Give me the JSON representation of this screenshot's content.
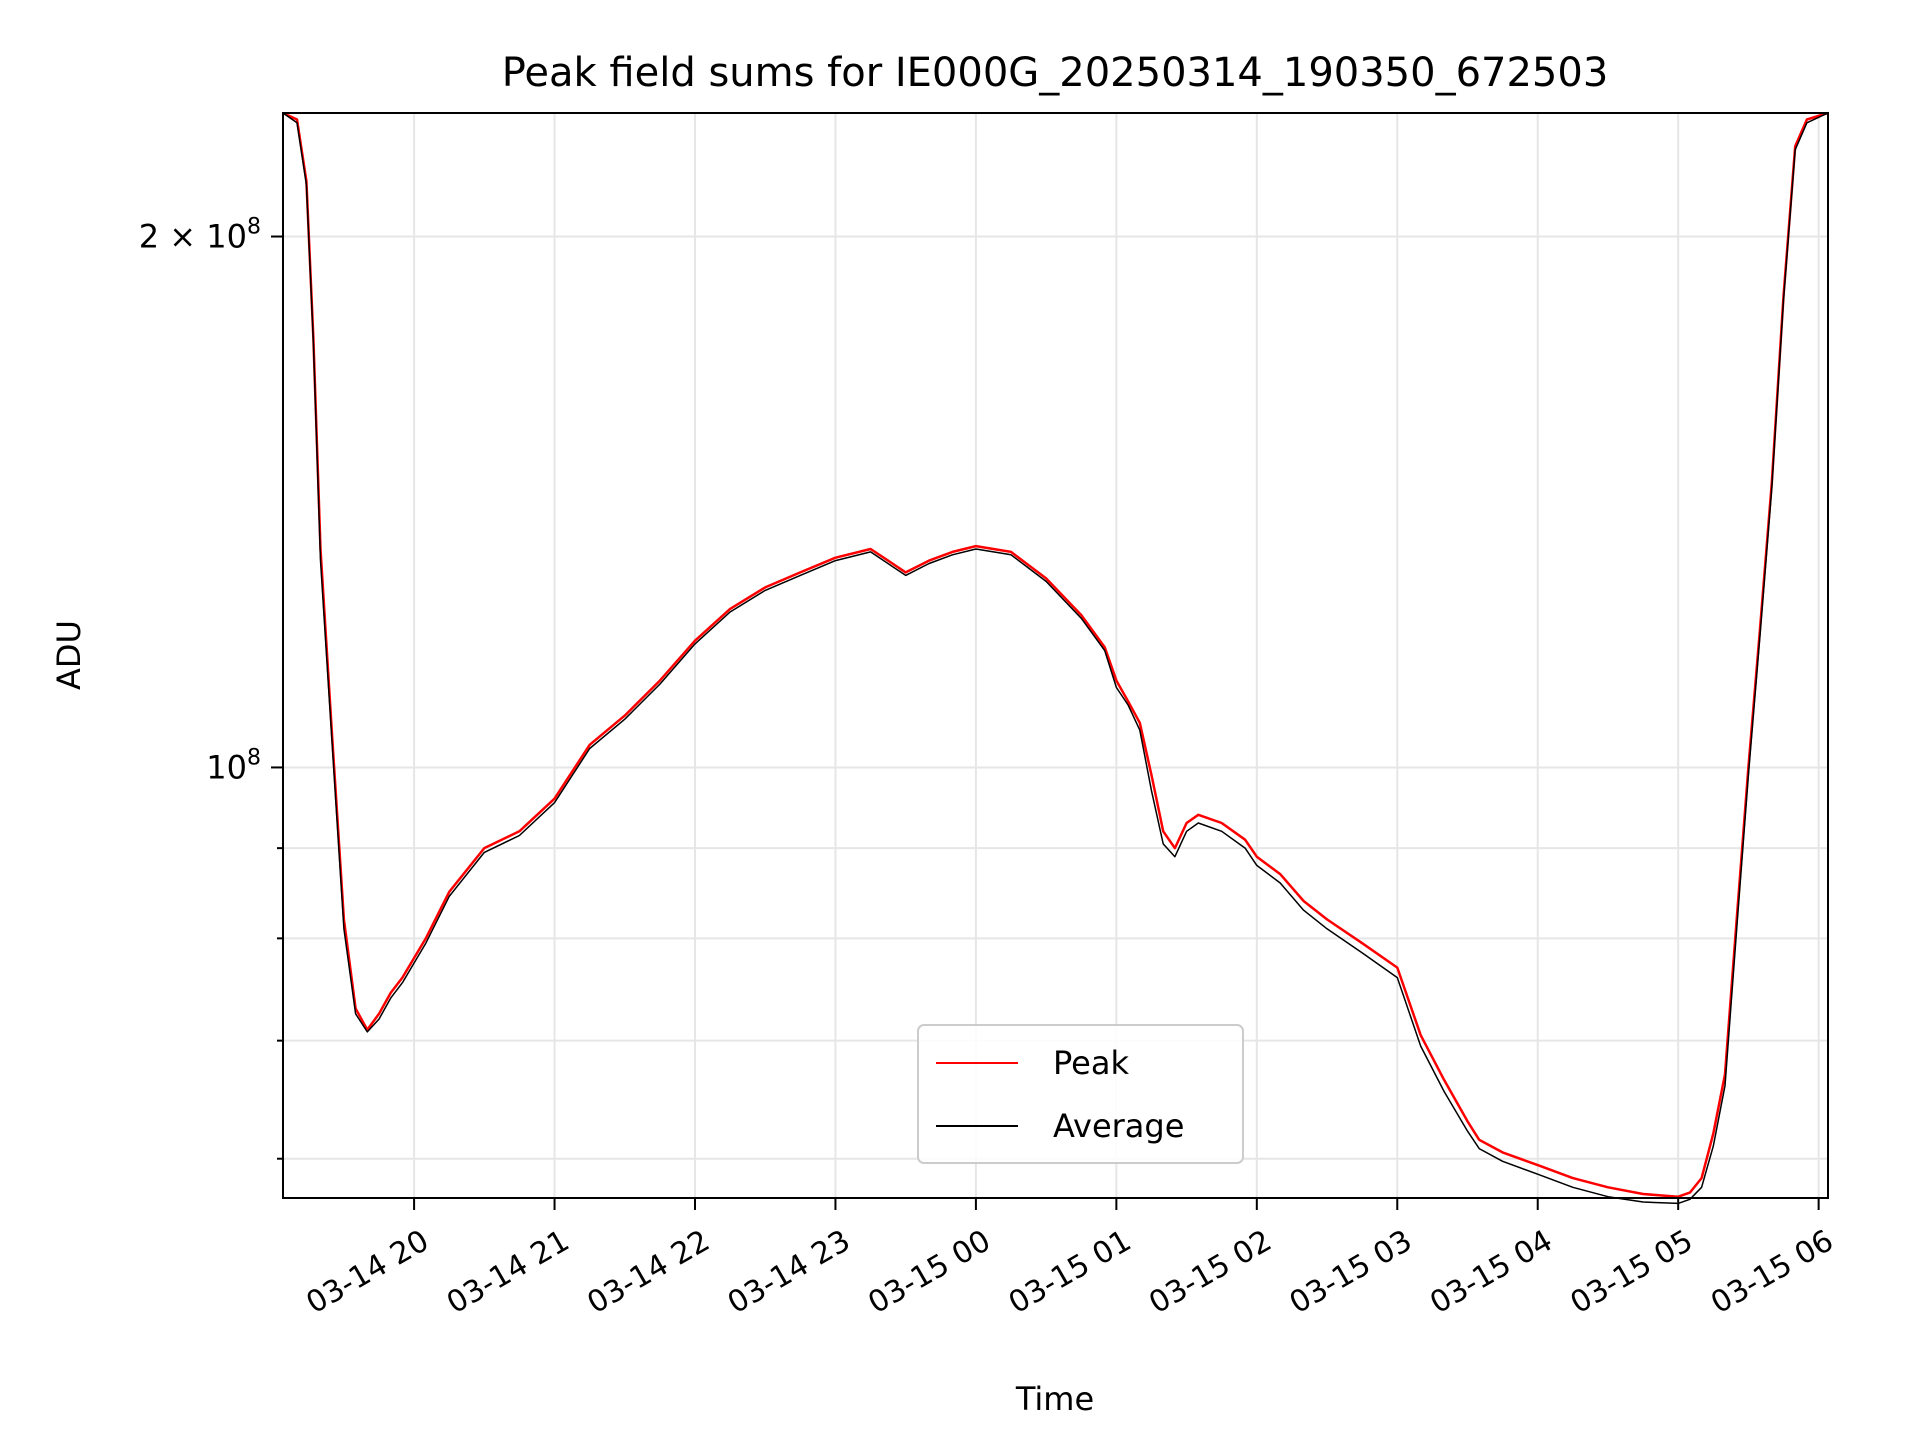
{
  "chart_data": {
    "type": "line",
    "title": "Peak field sums for IE000G_20250314_190350_672503",
    "xlabel": "Time",
    "ylabel": "ADU",
    "y_scale": "log",
    "ylim": [
      57000000,
      235000000
    ],
    "xlim": [
      "2025-03-14 19:04",
      "2025-03-15 06:04"
    ],
    "x_ticks": [
      {
        "t": "2025-03-14 20:00",
        "label": "03-14 20"
      },
      {
        "t": "2025-03-14 21:00",
        "label": "03-14 21"
      },
      {
        "t": "2025-03-14 22:00",
        "label": "03-14 22"
      },
      {
        "t": "2025-03-14 23:00",
        "label": "03-14 23"
      },
      {
        "t": "2025-03-15 00:00",
        "label": "03-15 00"
      },
      {
        "t": "2025-03-15 01:00",
        "label": "03-15 01"
      },
      {
        "t": "2025-03-15 02:00",
        "label": "03-15 02"
      },
      {
        "t": "2025-03-15 03:00",
        "label": "03-15 03"
      },
      {
        "t": "2025-03-15 04:00",
        "label": "03-15 04"
      },
      {
        "t": "2025-03-15 05:00",
        "label": "03-15 05"
      },
      {
        "t": "2025-03-15 06:00",
        "label": "03-15 06"
      }
    ],
    "y_major_ticks": [
      {
        "v": 100000000,
        "base": "10",
        "exp": "8",
        "coef": ""
      },
      {
        "v": 200000000,
        "base": "10",
        "exp": "8",
        "coef": "2 × "
      }
    ],
    "y_minor_ticks": [
      60000000,
      70000000,
      80000000,
      90000000
    ],
    "grid": true,
    "legend": {
      "placement": "lower center"
    },
    "series": [
      {
        "name": "Peak",
        "color": "#ff0000",
        "x": [
          "2025-03-14 19:04",
          "2025-03-14 19:10",
          "2025-03-14 19:14",
          "2025-03-14 19:17",
          "2025-03-14 19:20",
          "2025-03-14 19:25",
          "2025-03-14 19:30",
          "2025-03-14 19:35",
          "2025-03-14 19:40",
          "2025-03-14 19:45",
          "2025-03-14 19:50",
          "2025-03-14 19:55",
          "2025-03-14 20:05",
          "2025-03-14 20:15",
          "2025-03-14 20:30",
          "2025-03-14 20:45",
          "2025-03-14 21:00",
          "2025-03-14 21:15",
          "2025-03-14 21:30",
          "2025-03-14 21:45",
          "2025-03-14 22:00",
          "2025-03-14 22:15",
          "2025-03-14 22:30",
          "2025-03-14 22:45",
          "2025-03-14 23:00",
          "2025-03-14 23:15",
          "2025-03-14 23:30",
          "2025-03-14 23:40",
          "2025-03-14 23:50",
          "2025-03-15 00:00",
          "2025-03-15 00:15",
          "2025-03-15 00:30",
          "2025-03-15 00:45",
          "2025-03-15 00:55",
          "2025-03-15 01:00",
          "2025-03-15 01:05",
          "2025-03-15 01:10",
          "2025-03-15 01:15",
          "2025-03-15 01:20",
          "2025-03-15 01:25",
          "2025-03-15 01:30",
          "2025-03-15 01:35",
          "2025-03-15 01:45",
          "2025-03-15 01:55",
          "2025-03-15 02:00",
          "2025-03-15 02:10",
          "2025-03-15 02:20",
          "2025-03-15 02:30",
          "2025-03-15 02:45",
          "2025-03-15 03:00",
          "2025-03-15 03:10",
          "2025-03-15 03:20",
          "2025-03-15 03:30",
          "2025-03-15 03:35",
          "2025-03-15 03:45",
          "2025-03-15 04:00",
          "2025-03-15 04:15",
          "2025-03-15 04:30",
          "2025-03-15 04:45",
          "2025-03-15 05:00",
          "2025-03-15 05:05",
          "2025-03-15 05:10",
          "2025-03-15 05:15",
          "2025-03-15 05:20",
          "2025-03-15 05:25",
          "2025-03-15 05:30",
          "2025-03-15 05:35",
          "2025-03-15 05:40",
          "2025-03-15 05:45",
          "2025-03-15 05:50",
          "2025-03-15 05:55",
          "2025-03-15 06:04"
        ],
        "values": [
          235000000,
          233000000,
          215000000,
          175000000,
          133000000,
          104000000,
          82000000,
          73000000,
          71000000,
          72500000,
          74500000,
          76000000,
          80000000,
          85000000,
          90000000,
          92000000,
          96000000,
          103000000,
          107000000,
          112000000,
          118000000,
          123000000,
          126500000,
          129000000,
          131500000,
          133000000,
          129000000,
          131000000,
          132500000,
          133500000,
          132500000,
          128000000,
          122000000,
          117000000,
          112000000,
          109000000,
          106000000,
          99000000,
          92000000,
          90000000,
          93000000,
          94000000,
          93000000,
          91000000,
          89000000,
          87000000,
          84000000,
          82000000,
          79500000,
          77000000,
          70500000,
          66500000,
          63000000,
          61500000,
          60500000,
          59500000,
          58500000,
          57800000,
          57300000,
          57100000,
          57400000,
          58500000,
          62000000,
          67000000,
          82000000,
          100000000,
          120000000,
          145000000,
          185000000,
          225000000,
          233000000,
          235000000
        ]
      },
      {
        "name": "Average",
        "color": "#000000",
        "x": [
          "2025-03-14 19:04",
          "2025-03-14 19:10",
          "2025-03-14 19:14",
          "2025-03-14 19:17",
          "2025-03-14 19:20",
          "2025-03-14 19:25",
          "2025-03-14 19:30",
          "2025-03-14 19:35",
          "2025-03-14 19:40",
          "2025-03-14 19:45",
          "2025-03-14 19:50",
          "2025-03-14 19:55",
          "2025-03-14 20:05",
          "2025-03-14 20:15",
          "2025-03-14 20:30",
          "2025-03-14 20:45",
          "2025-03-14 21:00",
          "2025-03-14 21:15",
          "2025-03-14 21:30",
          "2025-03-14 21:45",
          "2025-03-14 22:00",
          "2025-03-14 22:15",
          "2025-03-14 22:30",
          "2025-03-14 22:45",
          "2025-03-14 23:00",
          "2025-03-14 23:15",
          "2025-03-14 23:30",
          "2025-03-14 23:40",
          "2025-03-14 23:50",
          "2025-03-15 00:00",
          "2025-03-15 00:15",
          "2025-03-15 00:30",
          "2025-03-15 00:45",
          "2025-03-15 00:55",
          "2025-03-15 01:00",
          "2025-03-15 01:05",
          "2025-03-15 01:10",
          "2025-03-15 01:15",
          "2025-03-15 01:20",
          "2025-03-15 01:25",
          "2025-03-15 01:30",
          "2025-03-15 01:35",
          "2025-03-15 01:45",
          "2025-03-15 01:55",
          "2025-03-15 02:00",
          "2025-03-15 02:10",
          "2025-03-15 02:20",
          "2025-03-15 02:30",
          "2025-03-15 02:45",
          "2025-03-15 03:00",
          "2025-03-15 03:10",
          "2025-03-15 03:20",
          "2025-03-15 03:30",
          "2025-03-15 03:35",
          "2025-03-15 03:45",
          "2025-03-15 04:00",
          "2025-03-15 04:15",
          "2025-03-15 04:30",
          "2025-03-15 04:45",
          "2025-03-15 05:00",
          "2025-03-15 05:05",
          "2025-03-15 05:10",
          "2025-03-15 05:15",
          "2025-03-15 05:20",
          "2025-03-15 05:25",
          "2025-03-15 05:30",
          "2025-03-15 05:35",
          "2025-03-15 05:40",
          "2025-03-15 05:45",
          "2025-03-15 05:50",
          "2025-03-15 05:55",
          "2025-03-15 06:04"
        ],
        "values": [
          235000000,
          232000000,
          214000000,
          174000000,
          131000000,
          103000000,
          81000000,
          72500000,
          70800000,
          72000000,
          74000000,
          75500000,
          79500000,
          84500000,
          89500000,
          91500000,
          95500000,
          102500000,
          106500000,
          111500000,
          117500000,
          122500000,
          126000000,
          128500000,
          131000000,
          132500000,
          128500000,
          130500000,
          132000000,
          133000000,
          132000000,
          127500000,
          121500000,
          116500000,
          111000000,
          108500000,
          105000000,
          97000000,
          90500000,
          89000000,
          92000000,
          93000000,
          92000000,
          90000000,
          88000000,
          86000000,
          83000000,
          81000000,
          78500000,
          76000000,
          69500000,
          65500000,
          62200000,
          60800000,
          59800000,
          58800000,
          57800000,
          57100000,
          56700000,
          56600000,
          56900000,
          57800000,
          61000000,
          66000000,
          81000000,
          99000000,
          119000000,
          144000000,
          184000000,
          224000000,
          232000000,
          235000000
        ]
      }
    ]
  }
}
